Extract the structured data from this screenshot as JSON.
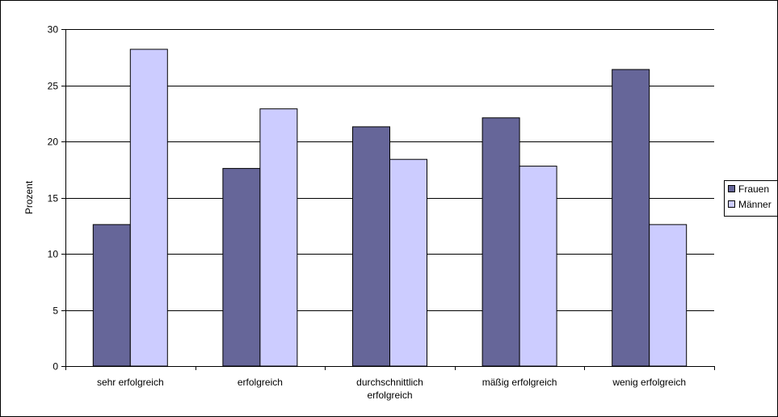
{
  "chart_data": {
    "type": "bar",
    "categories": [
      [
        "sehr erfolgreich"
      ],
      [
        "erfolgreich"
      ],
      [
        "durchschnittlich",
        "erfolgreich"
      ],
      [
        "mäßig erfolgreich"
      ],
      [
        "wenig erfolgreich"
      ]
    ],
    "series": [
      {
        "name": "Frauen",
        "color": "#666699",
        "values": [
          12.6,
          17.6,
          21.3,
          22.1,
          26.4
        ]
      },
      {
        "name": "Männer",
        "color": "#ccccff",
        "values": [
          28.2,
          22.9,
          18.4,
          17.8,
          12.6
        ]
      }
    ],
    "ylabel": "Prozent",
    "ylim": [
      0,
      30
    ],
    "yticks": [
      0,
      5,
      10,
      15,
      20,
      25,
      30
    ],
    "grid": true,
    "legend": "right"
  }
}
